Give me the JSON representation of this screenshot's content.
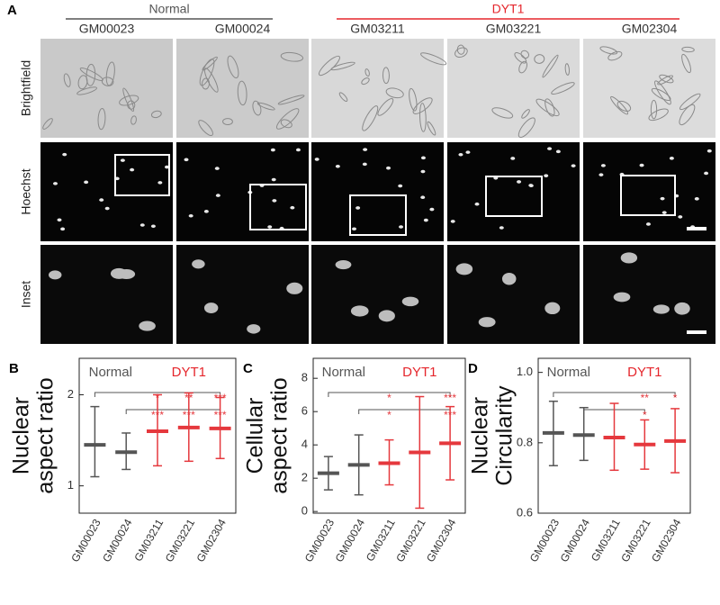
{
  "panel_a": {
    "label": "A",
    "groups": [
      {
        "name": "Normal",
        "color": "#555555"
      },
      {
        "name": "DYT1",
        "color": "#e5262c"
      }
    ],
    "columns": [
      "GM00023",
      "GM00024",
      "GM03211",
      "GM03221",
      "GM02304"
    ],
    "rows": [
      "Brightfield",
      "Hoechst",
      "Inset"
    ]
  },
  "chart_data": [
    {
      "type": "box",
      "label": "B",
      "ylabel": [
        "Nuclear",
        "aspect ratio"
      ],
      "groups": [
        {
          "name": "Normal",
          "color": "#555555"
        },
        {
          "name": "DYT1",
          "color": "#e5262c"
        }
      ],
      "categories": [
        "GM00023",
        "GM00024",
        "GM03211",
        "GM03221",
        "GM02304"
      ],
      "colors": [
        "#555555",
        "#555555",
        "#e5383d",
        "#e5383d",
        "#e5383d"
      ],
      "values": [
        1.45,
        1.37,
        1.6,
        1.64,
        1.63
      ],
      "min": [
        1.1,
        1.18,
        1.22,
        1.27,
        1.3
      ],
      "max": [
        1.87,
        1.58,
        2.0,
        2.02,
        1.97
      ],
      "annotations_top": [
        null,
        null,
        "*",
        "**",
        "***"
      ],
      "annotations_bottom": [
        null,
        null,
        "***",
        "***",
        "***"
      ],
      "ylim": [
        0.7,
        2.4
      ],
      "yticks": [
        1,
        2
      ]
    },
    {
      "type": "box",
      "label": "C",
      "ylabel": [
        "Cellular",
        "aspect ratio"
      ],
      "groups": [
        {
          "name": "Normal",
          "color": "#555555"
        },
        {
          "name": "DYT1",
          "color": "#e5262c"
        }
      ],
      "categories": [
        "GM00023",
        "GM00024",
        "GM03211",
        "GM03221",
        "GM02304"
      ],
      "colors": [
        "#555555",
        "#555555",
        "#e5383d",
        "#e5383d",
        "#e5383d"
      ],
      "values": [
        2.3,
        2.8,
        2.9,
        3.55,
        4.1
      ],
      "min": [
        1.3,
        1.0,
        1.6,
        0.2,
        1.9
      ],
      "max": [
        3.3,
        4.6,
        4.3,
        6.9,
        6.3
      ],
      "annotations_top": [
        null,
        null,
        "*",
        null,
        "***"
      ],
      "annotations_bottom": [
        null,
        null,
        "*",
        null,
        "***"
      ],
      "ylim": [
        -0.1,
        9.2
      ],
      "yticks": [
        0,
        2,
        4,
        6,
        8
      ]
    },
    {
      "type": "box",
      "label": "D",
      "ylabel": [
        "Nuclear",
        "Circularity"
      ],
      "groups": [
        {
          "name": "Normal",
          "color": "#555555"
        },
        {
          "name": "DYT1",
          "color": "#e5262c"
        }
      ],
      "categories": [
        "GM00023",
        "GM00024",
        "GM03211",
        "GM03221",
        "GM02304"
      ],
      "colors": [
        "#555555",
        "#555555",
        "#e5383d",
        "#e5383d",
        "#e5383d"
      ],
      "values": [
        0.828,
        0.822,
        0.815,
        0.795,
        0.805
      ],
      "min": [
        0.735,
        0.75,
        0.722,
        0.725,
        0.715
      ],
      "max": [
        0.918,
        0.9,
        0.912,
        0.865,
        0.897
      ],
      "annotations_top": [
        null,
        null,
        null,
        "**",
        "*"
      ],
      "annotations_bottom": [
        null,
        null,
        null,
        "*",
        null
      ],
      "ylim": [
        0.6,
        1.04
      ],
      "yticks": [
        0.6,
        0.8,
        {
          "value": 1,
          "label": "1.0"
        }
      ]
    }
  ]
}
